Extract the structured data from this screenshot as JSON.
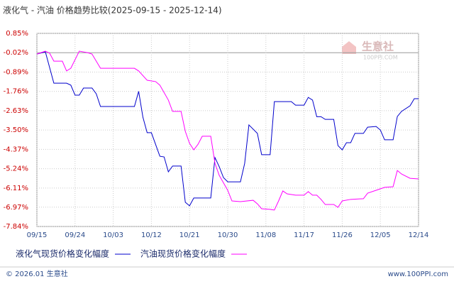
{
  "chart_data": {
    "type": "line",
    "title": "液化气 - 汽油 价格趋势比较(2025-09-15 - 2025-12-14)",
    "watermark": [
      "生意社",
      "100PPI.COM"
    ],
    "footer_left": "© 2026.01 生意社",
    "footer_right": "www.100PPI.com",
    "ylim": [
      -7.84,
      0.85
    ],
    "yticks": [
      {
        "value": 0.85,
        "label": "0.85%"
      },
      {
        "value": -0.02,
        "label": "-0.02%"
      },
      {
        "value": -0.89,
        "label": "-0.89%"
      },
      {
        "value": -1.76,
        "label": "-1.76%"
      },
      {
        "value": -2.63,
        "label": "-2.63%"
      },
      {
        "value": -3.5,
        "label": "-3.50%"
      },
      {
        "value": -4.37,
        "label": "-4.37%"
      },
      {
        "value": -5.24,
        "label": "-5.24%"
      },
      {
        "value": -6.11,
        "label": "-6.11%"
      },
      {
        "value": -6.97,
        "label": "-6.97%"
      },
      {
        "value": -7.84,
        "label": "-7.84%"
      }
    ],
    "xlim": [
      "09/15",
      "12/14"
    ],
    "xticks": [
      "09/15",
      "09/24",
      "10/03",
      "10/12",
      "10/21",
      "10/30",
      "11/08",
      "11/17",
      "11/26",
      "12/05",
      "12/14"
    ],
    "grid": true,
    "series": [
      {
        "name": "液化气现货价格变化幅度",
        "color": "#0000cc",
        "x": [
          "09/15",
          "09/17",
          "09/19",
          "09/22",
          "09/23",
          "09/24",
          "09/25",
          "09/26",
          "09/28",
          "09/29",
          "09/30",
          "10/08",
          "10/09",
          "10/10",
          "10/11",
          "10/12",
          "10/14",
          "10/15",
          "10/16",
          "10/17",
          "10/19",
          "10/20",
          "10/21",
          "10/22",
          "10/26",
          "10/27",
          "10/28",
          "10/29",
          "10/30",
          "11/02",
          "11/03",
          "11/04",
          "11/06",
          "11/07",
          "11/09",
          "11/10",
          "11/14",
          "11/15",
          "11/17",
          "11/18",
          "11/19",
          "11/20",
          "11/21",
          "11/22",
          "11/24",
          "11/25",
          "11/26",
          "11/27",
          "11/28",
          "11/29",
          "12/01",
          "12/02",
          "12/04",
          "12/05",
          "12/06",
          "12/08",
          "12/09",
          "12/10",
          "12/12",
          "12/13",
          "12/14"
        ],
        "values": [
          -0.08,
          0.02,
          -1.39,
          -1.39,
          -1.48,
          -1.93,
          -1.93,
          -1.61,
          -1.61,
          -1.87,
          -2.44,
          -2.44,
          -1.76,
          -2.92,
          -3.62,
          -3.62,
          -4.68,
          -4.71,
          -5.38,
          -5.12,
          -5.12,
          -6.75,
          -6.91,
          -6.56,
          -6.56,
          -4.74,
          -5.15,
          -5.64,
          -5.83,
          -5.83,
          -5.0,
          -3.27,
          -3.65,
          -4.61,
          -4.61,
          -2.22,
          -2.22,
          -2.38,
          -2.38,
          -2.03,
          -2.15,
          -2.9,
          -2.9,
          -3.02,
          -3.02,
          -4.2,
          -4.39,
          -4.07,
          -4.07,
          -3.65,
          -3.65,
          -3.37,
          -3.34,
          -3.5,
          -3.94,
          -3.94,
          -2.89,
          -2.66,
          -2.41,
          -2.09,
          -2.09
        ]
      },
      {
        "name": "汽油现货价格变化幅度",
        "color": "#ff00ff",
        "x": [
          "09/15",
          "09/17",
          "09/18",
          "09/19",
          "09/21",
          "09/22",
          "09/23",
          "09/25",
          "09/27",
          "09/28",
          "09/30",
          "10/08",
          "10/09",
          "10/11",
          "10/13",
          "10/14",
          "10/16",
          "10/17",
          "10/19",
          "10/20",
          "10/21",
          "10/22",
          "10/23",
          "10/24",
          "10/26",
          "10/27",
          "10/28",
          "10/30",
          "10/31",
          "11/02",
          "11/05",
          "11/06",
          "11/07",
          "11/09",
          "11/10",
          "11/11",
          "11/12",
          "11/13",
          "11/15",
          "11/17",
          "11/18",
          "11/19",
          "11/20",
          "11/21",
          "11/22",
          "11/24",
          "11/25",
          "11/26",
          "11/28",
          "12/01",
          "12/02",
          "12/04",
          "12/06",
          "12/08",
          "12/09",
          "12/10",
          "12/12",
          "12/14"
        ],
        "values": [
          -0.08,
          0.05,
          -0.04,
          -0.4,
          -0.4,
          -0.84,
          -0.72,
          0.05,
          -0.02,
          -0.08,
          -0.72,
          -0.72,
          -0.84,
          -1.26,
          -1.32,
          -1.48,
          -2.15,
          -2.66,
          -2.66,
          -3.56,
          -4.1,
          -4.39,
          -4.14,
          -3.78,
          -3.78,
          -5.0,
          -5.54,
          -6.21,
          -6.69,
          -6.72,
          -6.66,
          -6.82,
          -7.04,
          -7.07,
          -7.1,
          -6.69,
          -6.24,
          -6.37,
          -6.43,
          -6.43,
          -6.27,
          -6.43,
          -6.43,
          -6.62,
          -6.85,
          -6.85,
          -6.98,
          -6.69,
          -6.62,
          -6.59,
          -6.34,
          -6.21,
          -6.08,
          -6.05,
          -5.32,
          -5.48,
          -5.67,
          -5.7
        ]
      }
    ]
  }
}
